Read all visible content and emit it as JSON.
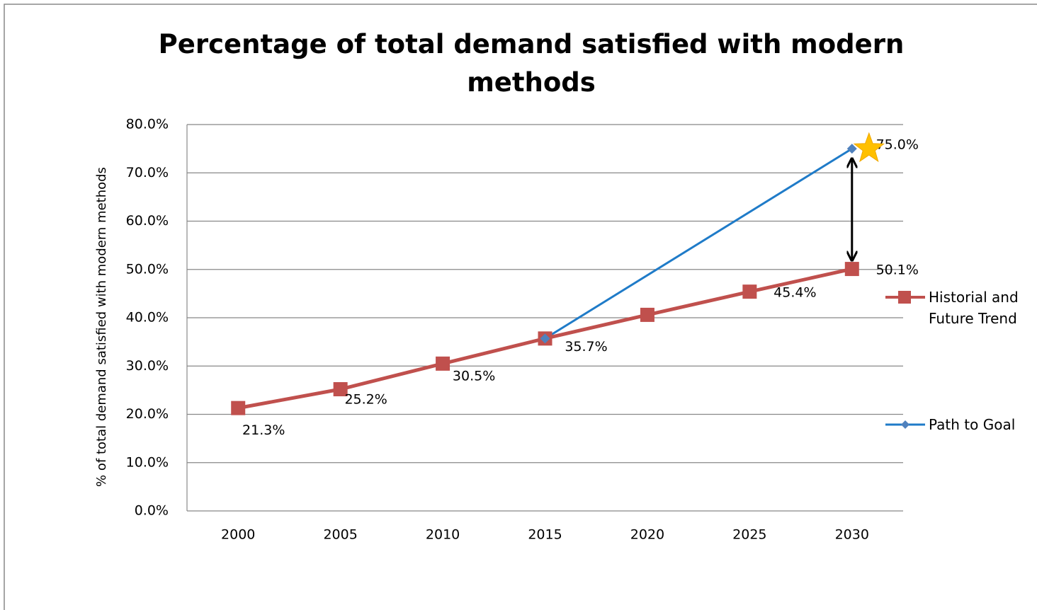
{
  "chart_data": {
    "type": "line",
    "title": "Percentage of total demand satisfied with modern methods",
    "ylabel": "% of total demand satisfied with modern methods",
    "categories": [
      "2000",
      "2005",
      "2010",
      "2015",
      "2020",
      "2025",
      "2030"
    ],
    "series": [
      {
        "name": "Historial and Future Trend",
        "color": "#c0504d",
        "marker": "square",
        "values": [
          21.3,
          25.2,
          30.5,
          35.7,
          40.6,
          45.4,
          50.1
        ],
        "value_labels": [
          "21.3%",
          "25.2%",
          "30.5%",
          "35.7%",
          null,
          "45.4%",
          "50.1%"
        ]
      },
      {
        "name": "Path to Goal",
        "color": "#1f7bc8",
        "marker": "diamond",
        "values": [
          null,
          null,
          null,
          35.7,
          null,
          null,
          75.0
        ],
        "value_labels": [
          null,
          null,
          null,
          null,
          null,
          null,
          "75.0%"
        ]
      }
    ],
    "connect_gaps": true,
    "ylim": [
      0,
      80
    ],
    "yticks": [
      {
        "value": 0,
        "label": "0.0%"
      },
      {
        "value": 10,
        "label": "10.0%"
      },
      {
        "value": 20,
        "label": "20.0%"
      },
      {
        "value": 30,
        "label": "30.0%"
      },
      {
        "value": 40,
        "label": "40.0%"
      },
      {
        "value": 50,
        "label": "50.0%"
      },
      {
        "value": 60,
        "label": "60.0%"
      },
      {
        "value": 70,
        "label": "70.0%"
      },
      {
        "value": 80,
        "label": "80.0%"
      }
    ],
    "grid": true,
    "legend": "right"
  }
}
